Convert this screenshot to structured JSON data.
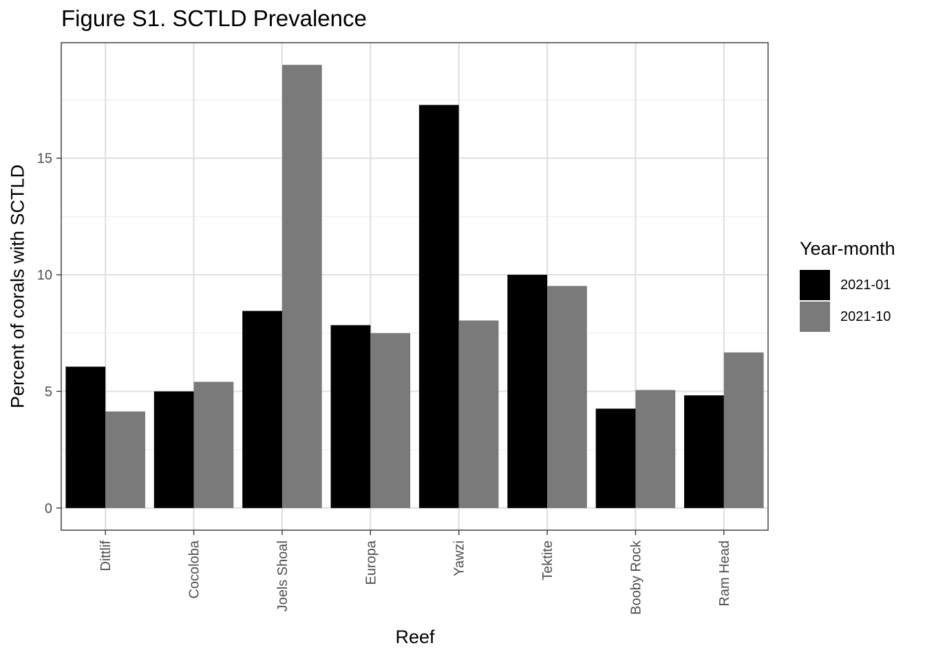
{
  "chart_data": {
    "type": "bar",
    "title": "Figure S1. SCTLD Prevalence",
    "xlabel": "Reef",
    "ylabel": "Percent of corals with SCTLD",
    "categories": [
      "Dittlif",
      "Cocoloba",
      "Joels Shoal",
      "Europa",
      "Yawzi",
      "Tektite",
      "Booby Rock",
      "Ram Head"
    ],
    "series": [
      {
        "name": "2021-01",
        "color": "#000000",
        "values": [
          6.06,
          5.0,
          8.45,
          7.84,
          17.28,
          10.0,
          4.26,
          4.83
        ]
      },
      {
        "name": "2021-10",
        "color": "#7a7a7a",
        "values": [
          4.14,
          5.41,
          19.0,
          7.5,
          8.04,
          9.52,
          5.06,
          6.67
        ]
      }
    ],
    "ylim": [
      -0.95,
      19.95
    ],
    "yticks": [
      0,
      5,
      10,
      15
    ],
    "grid": true,
    "legend": {
      "title": "Year-month",
      "placement": "right"
    }
  }
}
